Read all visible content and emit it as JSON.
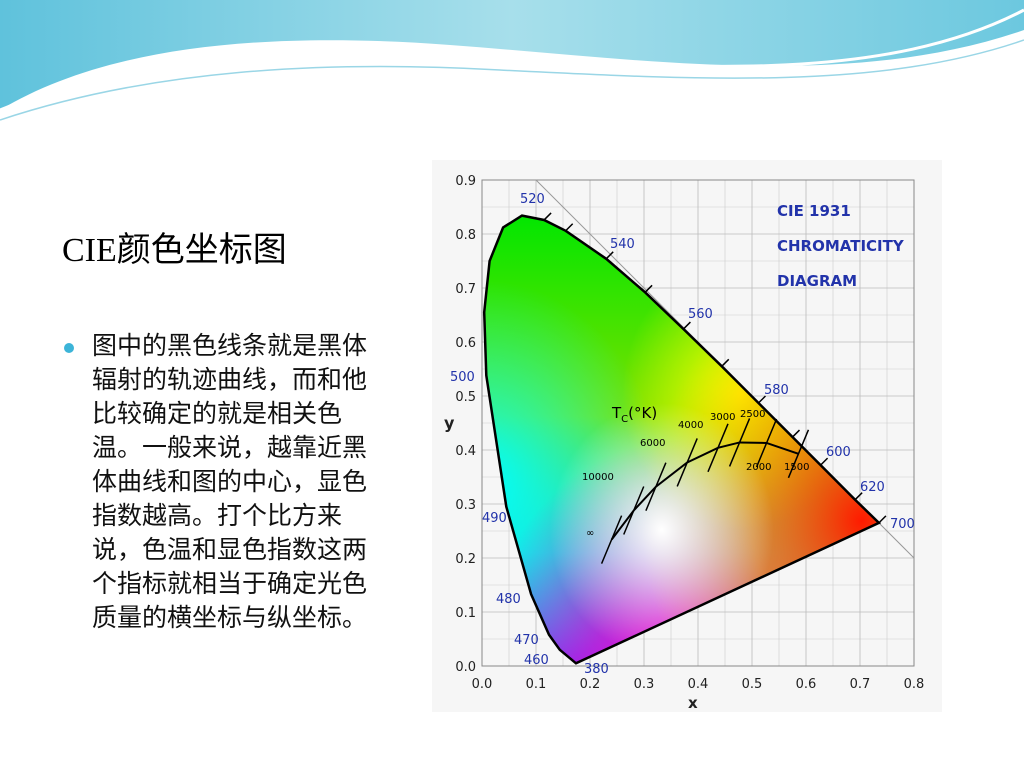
{
  "slide": {
    "title": "CIE颜色坐标图",
    "bullets": [
      "图中的黑色线条就是黑体辐射的轨迹曲线，而和他比较确定的就是相关色温。一般来说，越靠近黑体曲线和图的中心，显色指数越高。打个比方来说，色温和显色指数这两个指标就相当于确定光色质量的横坐标与纵坐标。"
    ]
  },
  "figure": {
    "title": [
      "CIE 1931",
      "CHROMATICITY",
      "DIAGRAM"
    ],
    "x_label": "x",
    "y_label": "y",
    "xticks": [
      {
        "value": 0,
        "label": "0.0"
      },
      0.1,
      0.2,
      0.3,
      0.4,
      0.5,
      0.6,
      0.7,
      0.8
    ],
    "yticks": [
      {
        "value": 0,
        "label": "0.0"
      },
      0.1,
      0.2,
      0.3,
      0.4,
      0.5,
      0.6,
      0.7,
      0.8,
      0.9
    ],
    "wavelengths": [
      "520",
      "540",
      "560",
      "580",
      "600",
      "620",
      "700",
      "500",
      "490",
      "480",
      "470",
      "460",
      "380"
    ],
    "temperature_title": {
      "main": "T",
      "sub": "C",
      "unit": "(°K)"
    },
    "temperatures": [
      "10000",
      "6000",
      "4000",
      "3000",
      "2500",
      "2000",
      "1500",
      "∞"
    ]
  }
}
